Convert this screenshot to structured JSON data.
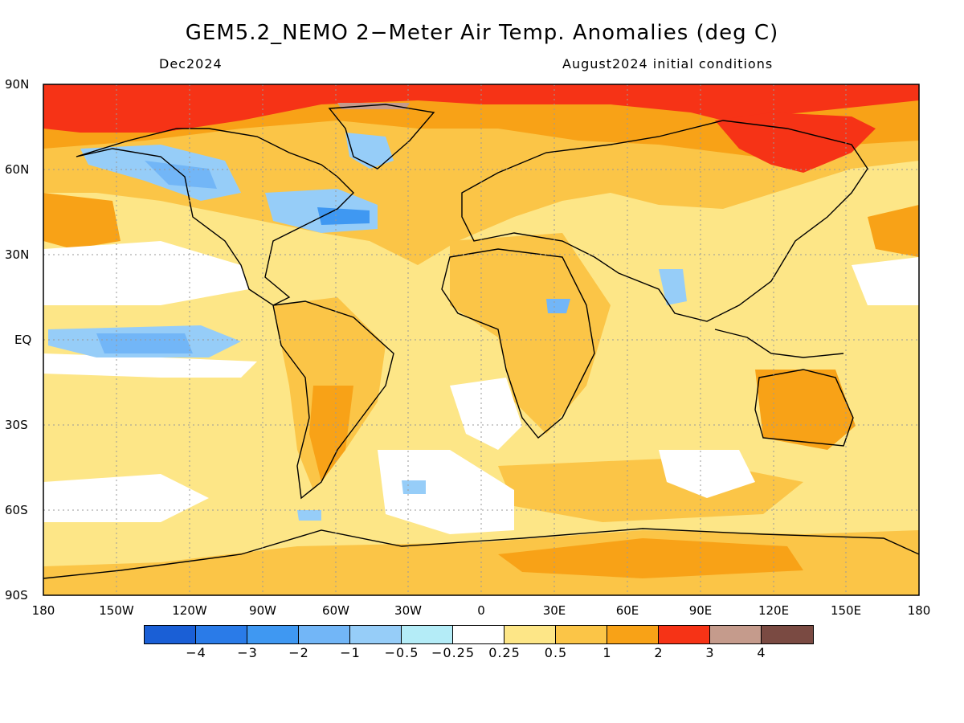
{
  "title": "GEM5.2_NEMO 2−Meter Air Temp. Anomalies (deg C)",
  "subtitle_left": "Dec2024",
  "subtitle_right": "August2024 initial conditions",
  "lat_labels": [
    "90N",
    "60N",
    "30N",
    "EQ",
    "30S",
    "60S",
    "90S"
  ],
  "lon_labels": [
    "180",
    "150W",
    "120W",
    "90W",
    "60W",
    "30W",
    "0",
    "30E",
    "60E",
    "90E",
    "120E",
    "150E",
    "180"
  ],
  "colorbar": {
    "colors": [
      "#1a5fd6",
      "#2a7be8",
      "#3f98f2",
      "#72b6f7",
      "#96cdf8",
      "#b4ecf7",
      "#ffffff",
      "#fde687",
      "#fbc547",
      "#f8a217",
      "#f63316",
      "#c59b8c",
      "#7a4a42"
    ],
    "tick_labels": [
      "−4",
      "−3",
      "−2",
      "−1",
      "−0.5",
      "−0.25",
      "0.25",
      "0.5",
      "1",
      "2",
      "3",
      "4"
    ]
  },
  "map_colors": {
    "ocean_base": "#fde687",
    "warm": "#fbc547",
    "warmer": "#f8a217",
    "hot": "#f63316",
    "neutral": "#ffffff",
    "cool": "#96cdf8",
    "cooler": "#72b6f7",
    "coolest": "#3f98f2",
    "extreme_warm": "#c59b8c"
  }
}
